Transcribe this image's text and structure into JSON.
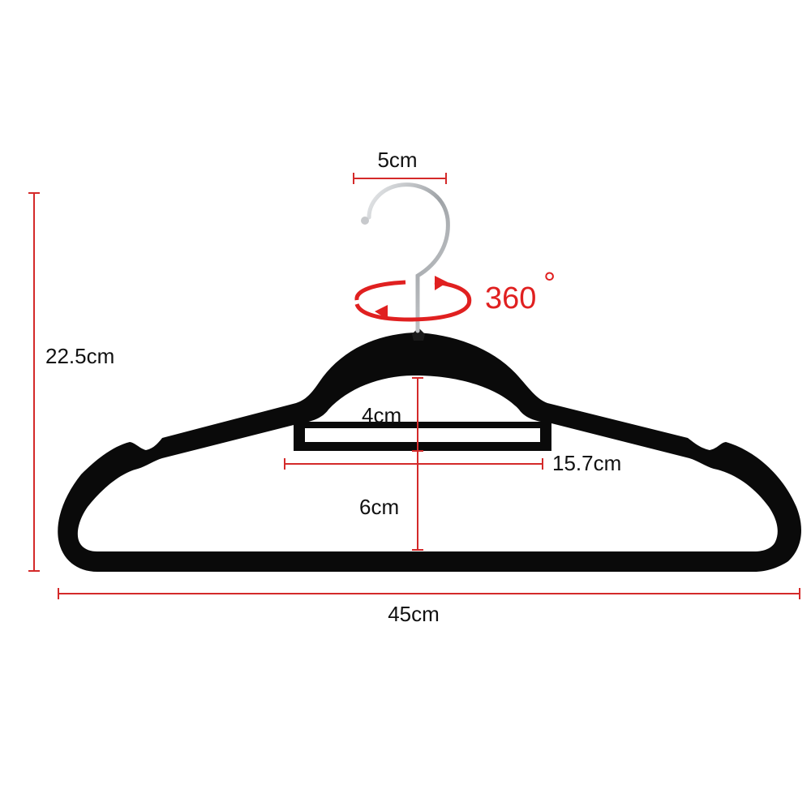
{
  "colors": {
    "dimension_line": "#d42a2a",
    "hanger_body": "#0a0a0a",
    "hook_metal": "#b9bcc0",
    "rotation_arrow": "#e02020",
    "text": "#111111"
  },
  "dimensions": {
    "hook_width": "5cm",
    "total_height": "22.5cm",
    "rotation": "360",
    "rotation_symbol": "°",
    "inner_bar_gap": "4cm",
    "inner_bar_width": "15.7cm",
    "lower_gap": "6cm",
    "total_width": "45cm"
  }
}
